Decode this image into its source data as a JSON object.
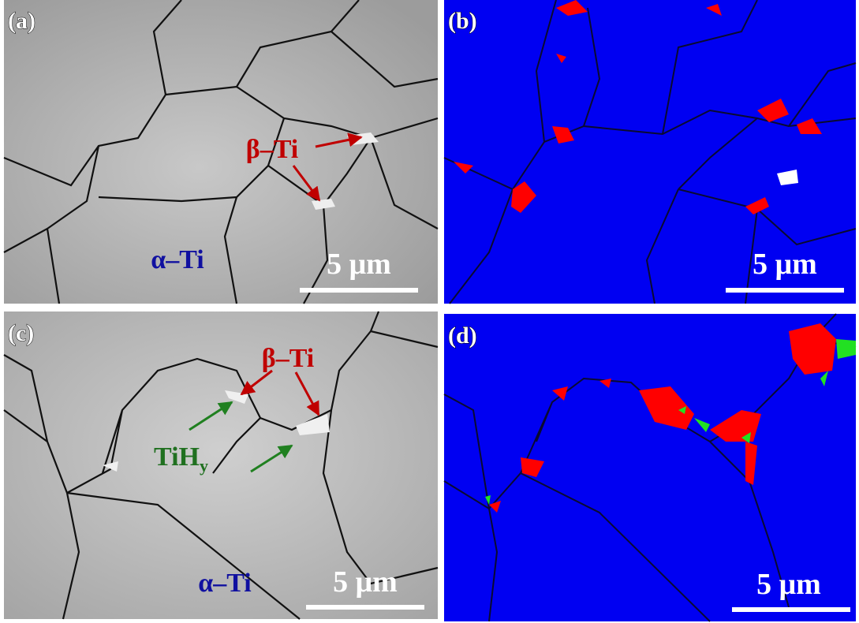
{
  "panels": [
    {
      "label": "(a)",
      "scale_bar": "5 μm",
      "annotations": [
        {
          "text": "β–Ti"
        },
        {
          "text": "α–Ti"
        }
      ]
    },
    {
      "label": "(b)",
      "scale_bar": "5 μm"
    },
    {
      "label": "(c)",
      "scale_bar": "5 μm",
      "annotations": [
        {
          "text": "β–Ti"
        },
        {
          "text": "TiH",
          "subscript": "y"
        },
        {
          "text": "α–Ti"
        }
      ]
    },
    {
      "label": "(d)",
      "scale_bar": "5 μm"
    }
  ]
}
